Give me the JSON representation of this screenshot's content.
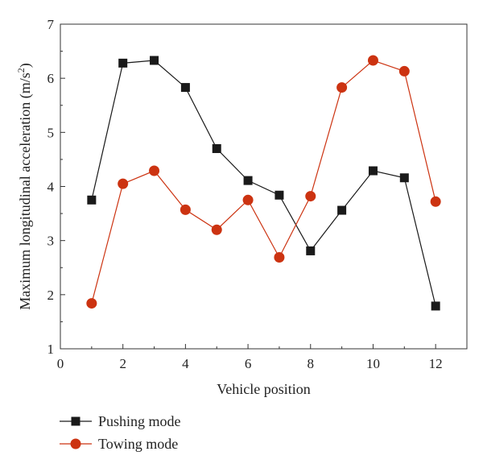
{
  "chart_data": {
    "type": "line",
    "xlabel": "Vehicle position",
    "ylabel": "Maximum longitudinal acceleration (m/s²)",
    "ylabel_main": "Maximum longitudinal acceleration (m/s",
    "ylabel_sup": "2",
    "ylabel_end": ")",
    "xlim": [
      0,
      13
    ],
    "ylim": [
      1,
      7
    ],
    "xticks": [
      0,
      2,
      4,
      6,
      8,
      10,
      12
    ],
    "yticks": [
      1,
      2,
      3,
      4,
      5,
      6,
      7
    ],
    "grid": false,
    "legend_placement": "bottom-left",
    "x": [
      1,
      2,
      3,
      4,
      5,
      6,
      7,
      8,
      9,
      10,
      11,
      12
    ],
    "series": [
      {
        "name": "Pushing mode",
        "marker": "square",
        "color": "#1a1a1a",
        "values": [
          3.75,
          6.28,
          6.33,
          5.83,
          4.7,
          4.11,
          3.84,
          2.81,
          3.56,
          4.29,
          4.16,
          1.79
        ]
      },
      {
        "name": "Towing mode",
        "marker": "circle",
        "color": "#cc3311",
        "values": [
          1.84,
          4.05,
          4.29,
          3.57,
          3.2,
          3.75,
          2.69,
          3.82,
          5.83,
          6.33,
          6.13,
          3.72
        ]
      }
    ]
  }
}
